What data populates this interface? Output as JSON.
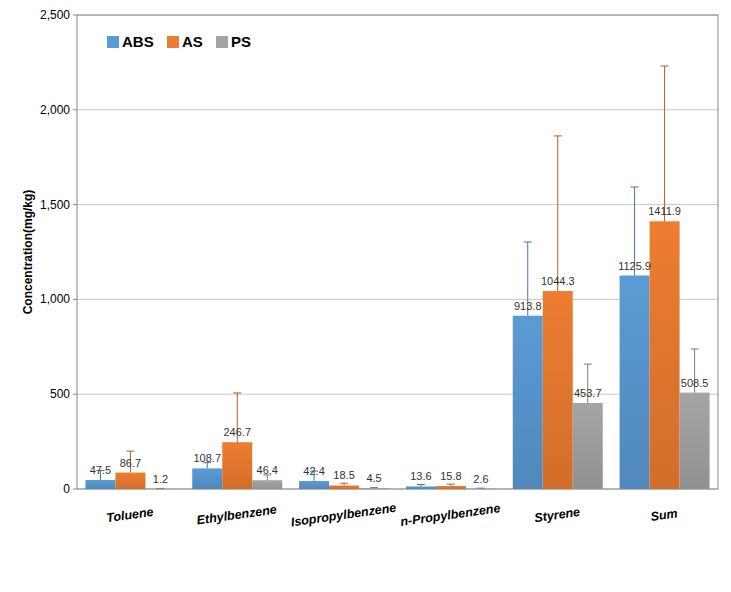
{
  "chart_data": {
    "type": "bar",
    "y_label": "Concentration(mg/kg)",
    "categories": [
      "Toluene",
      "Ethylbenzene",
      "Isopropylbenzene",
      "n-Propylbenzene",
      "Styrene",
      "Sum"
    ],
    "series": [
      {
        "name": "ABS",
        "color": "#5b9bd5",
        "values": [
          47.5,
          108.7,
          42.4,
          13.6,
          913.8,
          1125.9
        ],
        "errors": [
          50,
          30,
          52,
          10,
          389,
          467
        ]
      },
      {
        "name": "AS",
        "color": "#ed7d31",
        "values": [
          86.7,
          246.7,
          18.5,
          15.8,
          1044.3,
          1411.9
        ],
        "errors": [
          113,
          260,
          12,
          10,
          818,
          819
        ]
      },
      {
        "name": "PS",
        "color": "#a5a5a5",
        "values": [
          1.2,
          46.4,
          4.5,
          2.6,
          453.7,
          508.5
        ],
        "errors": [
          2,
          28,
          3,
          2,
          205,
          230
        ]
      }
    ],
    "ylim": [
      0,
      2500
    ],
    "yticks": [
      0,
      500,
      {
        "value": 1000,
        "label": "1,000"
      },
      {
        "value": 1500,
        "label": "1,500"
      },
      {
        "value": 2000,
        "label": "2,000"
      },
      {
        "value": 2500,
        "label": "2,500"
      }
    ],
    "grid": true,
    "legend": "top-left",
    "data_labels": true
  }
}
